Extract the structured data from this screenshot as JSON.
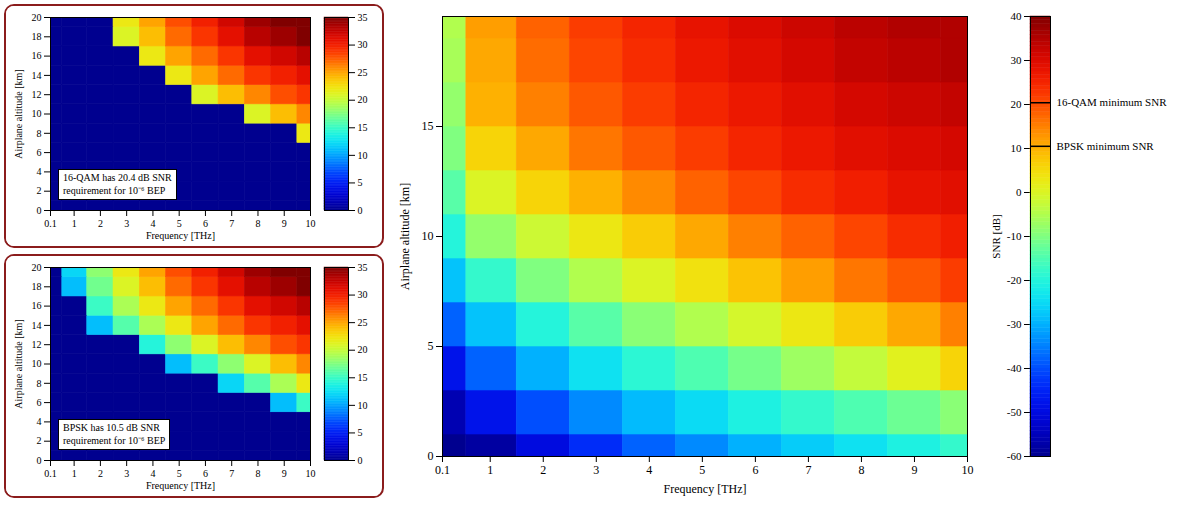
{
  "chart_data": [
    {
      "type": "heatmap",
      "xlabel": "Frequency [THz]",
      "ylabel": "Airplane altitude [km]",
      "x": [
        0.1,
        1,
        2,
        3,
        4,
        5,
        6,
        7,
        8,
        9,
        10
      ],
      "y": [
        0,
        2,
        4,
        6,
        8,
        10,
        12,
        14,
        16,
        18,
        20
      ],
      "values": [
        [
          -60,
          -58,
          -50,
          -44,
          -38,
          -34,
          -30,
          -27,
          -24,
          -21,
          -18
        ],
        [
          -56,
          -48,
          -40,
          -34,
          -29,
          -25,
          -21,
          -18,
          -15,
          -12,
          -9
        ],
        [
          -48,
          -38,
          -30,
          -24,
          -19,
          -15,
          -11,
          -7,
          -3,
          1,
          6
        ],
        [
          -38,
          -28,
          -20,
          -14,
          -9,
          -5,
          -1,
          3,
          7,
          11,
          15
        ],
        [
          -28,
          -18,
          -10,
          -5,
          0,
          4,
          8,
          12,
          16,
          19,
          22
        ],
        [
          -20,
          -8,
          -2,
          3,
          7,
          11,
          15,
          18,
          21,
          24,
          26
        ],
        [
          -14,
          0,
          6,
          10,
          14,
          18,
          21,
          24,
          26,
          28,
          29
        ],
        [
          -10,
          6,
          11,
          16,
          19,
          22,
          25,
          27,
          29,
          30,
          31
        ],
        [
          -8,
          10,
          15,
          19,
          22,
          25,
          27,
          29,
          31,
          32,
          33
        ],
        [
          -6,
          11,
          17,
          21,
          24,
          27,
          29,
          31,
          33,
          34,
          35
        ],
        [
          -5,
          12,
          18,
          22,
          25,
          28,
          30,
          32,
          34,
          35,
          35
        ]
      ],
      "xlim": [
        0.1,
        10
      ],
      "xticks": [
        0.1,
        1,
        2,
        3,
        4,
        5,
        6,
        7,
        8,
        9,
        10
      ],
      "ylim": [
        0,
        20
      ],
      "yticks": [
        0,
        5,
        10,
        15
      ],
      "colorbar": {
        "label": "SNR [dB]",
        "range": [
          -60,
          40
        ],
        "ticks": [
          -60,
          -50,
          -40,
          -30,
          -20,
          -10,
          0,
          10,
          20,
          30,
          40
        ]
      },
      "thresholds": [
        {
          "name": "16-QAM minimum SNR",
          "value": 20.4
        },
        {
          "name": "BPSK minimum SNR",
          "value": 10.5
        }
      ]
    },
    {
      "type": "heatmap",
      "xlabel": "Frequency [THz]",
      "ylabel": "Airplane altitude [km]",
      "annotation": [
        "16-QAM has 20.4 dB SNR",
        "requirement for 10⁻⁶ BEP"
      ],
      "x": [
        0.1,
        1,
        2,
        3,
        4,
        5,
        6,
        7,
        8,
        9,
        10
      ],
      "y": [
        0,
        2,
        4,
        6,
        8,
        10,
        12,
        14,
        16,
        18,
        20
      ],
      "values": [
        [
          0,
          0,
          0,
          0,
          0,
          0,
          0,
          0,
          0,
          0,
          0
        ],
        [
          0,
          0,
          0,
          0,
          0,
          0,
          0,
          0,
          0,
          0,
          0
        ],
        [
          0,
          0,
          0,
          0,
          0,
          0,
          0,
          0,
          0,
          0,
          0
        ],
        [
          0,
          0,
          0,
          0,
          0,
          0,
          0,
          0,
          0,
          0,
          0
        ],
        [
          0,
          0,
          0,
          0,
          0,
          0,
          0,
          0,
          0,
          0,
          22
        ],
        [
          0,
          0,
          0,
          0,
          0,
          0,
          0,
          0,
          21,
          24,
          26
        ],
        [
          0,
          0,
          0,
          0,
          0,
          0,
          21,
          24,
          26,
          28,
          29
        ],
        [
          0,
          0,
          0,
          0,
          0,
          22,
          25,
          27,
          29,
          30,
          31
        ],
        [
          0,
          0,
          0,
          0,
          22,
          25,
          27,
          29,
          31,
          32,
          33
        ],
        [
          0,
          0,
          0,
          21,
          24,
          27,
          29,
          31,
          33,
          34,
          35
        ],
        [
          0,
          0,
          0,
          22,
          25,
          28,
          30,
          32,
          34,
          35,
          35
        ]
      ],
      "xlim": [
        0.1,
        10
      ],
      "xticks": [
        0.1,
        1,
        2,
        3,
        4,
        5,
        6,
        7,
        8,
        9,
        10
      ],
      "ylim": [
        0,
        20
      ],
      "yticks": [
        0,
        2,
        4,
        6,
        8,
        10,
        12,
        14,
        16,
        18,
        20
      ],
      "colorbar": {
        "range": [
          0,
          35
        ],
        "ticks": [
          0,
          5,
          10,
          15,
          20,
          25,
          30,
          35
        ]
      }
    },
    {
      "type": "heatmap",
      "xlabel": "Frequency [THz]",
      "ylabel": "Airplane altitude [km]",
      "annotation": [
        "BPSK has 10.5 dB SNR",
        "requirement for 10⁻⁶ BEP"
      ],
      "x": [
        0.1,
        1,
        2,
        3,
        4,
        5,
        6,
        7,
        8,
        9,
        10
      ],
      "y": [
        0,
        2,
        4,
        6,
        8,
        10,
        12,
        14,
        16,
        18,
        20
      ],
      "values": [
        [
          0,
          0,
          0,
          0,
          0,
          0,
          0,
          0,
          0,
          0,
          0
        ],
        [
          0,
          0,
          0,
          0,
          0,
          0,
          0,
          0,
          0,
          0,
          0
        ],
        [
          0,
          0,
          0,
          0,
          0,
          0,
          0,
          0,
          0,
          0,
          0
        ],
        [
          0,
          0,
          0,
          0,
          0,
          0,
          0,
          0,
          0,
          11,
          15
        ],
        [
          0,
          0,
          0,
          0,
          0,
          0,
          0,
          12,
          16,
          19,
          22
        ],
        [
          0,
          0,
          0,
          0,
          0,
          11,
          15,
          18,
          21,
          24,
          26
        ],
        [
          0,
          0,
          0,
          0,
          14,
          18,
          21,
          24,
          26,
          28,
          29
        ],
        [
          0,
          0,
          11,
          16,
          19,
          22,
          25,
          27,
          29,
          30,
          31
        ],
        [
          0,
          0,
          15,
          19,
          22,
          25,
          27,
          29,
          31,
          32,
          33
        ],
        [
          0,
          11,
          17,
          21,
          24,
          27,
          29,
          31,
          33,
          34,
          35
        ],
        [
          0,
          12,
          18,
          22,
          25,
          28,
          30,
          32,
          34,
          35,
          35
        ]
      ],
      "xlim": [
        0.1,
        10
      ],
      "xticks": [
        0.1,
        1,
        2,
        3,
        4,
        5,
        6,
        7,
        8,
        9,
        10
      ],
      "ylim": [
        0,
        20
      ],
      "yticks": [
        0,
        2,
        4,
        6,
        8,
        10,
        12,
        14,
        16,
        18,
        20
      ],
      "colorbar": {
        "range": [
          0,
          35
        ],
        "ticks": [
          0,
          5,
          10,
          15,
          20,
          25,
          30,
          35
        ]
      }
    }
  ]
}
